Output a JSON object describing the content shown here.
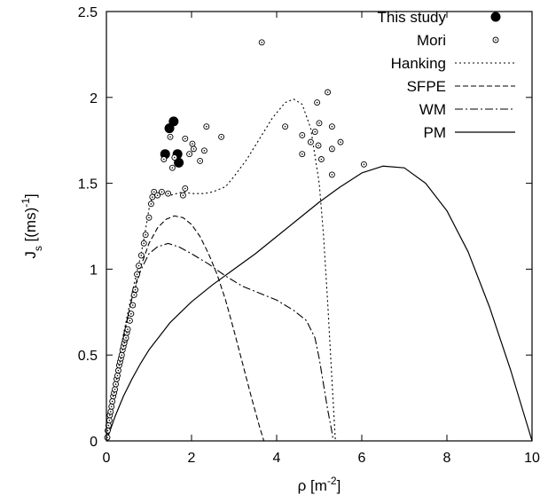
{
  "chart_data": {
    "type": "scatter+line",
    "title": "",
    "xlabel": "ρ [m",
    "xlabel_sup": "-2",
    "xlabel_close": "]",
    "ylabel": "J",
    "ylabel_sub": "s",
    "ylabel_mid": " [(ms)",
    "ylabel_sup": "-1",
    "ylabel_close": "]",
    "xlim": [
      0,
      10
    ],
    "ylim": [
      0,
      2.5
    ],
    "xticks": [
      "0",
      "2",
      "4",
      "6",
      "8",
      "10"
    ],
    "yticks": [
      "0",
      "0.5",
      "1",
      "1.5",
      "2",
      "2.5"
    ],
    "grid": false,
    "legend_position": "top-right",
    "series": [
      {
        "name": "This study",
        "kind": "marker-filled",
        "points": [
          [
            1.38,
            1.67
          ],
          [
            1.48,
            1.82
          ],
          [
            1.58,
            1.86
          ],
          [
            1.67,
            1.67
          ],
          [
            1.7,
            1.62
          ]
        ]
      },
      {
        "name": "Mori",
        "kind": "marker-open",
        "points": [
          [
            0.02,
            0.02
          ],
          [
            0.03,
            0.06
          ],
          [
            0.05,
            0.09
          ],
          [
            0.07,
            0.12
          ],
          [
            0.08,
            0.15
          ],
          [
            0.1,
            0.17
          ],
          [
            0.12,
            0.2
          ],
          [
            0.14,
            0.23
          ],
          [
            0.16,
            0.26
          ],
          [
            0.18,
            0.28
          ],
          [
            0.2,
            0.3
          ],
          [
            0.22,
            0.33
          ],
          [
            0.24,
            0.36
          ],
          [
            0.26,
            0.38
          ],
          [
            0.28,
            0.41
          ],
          [
            0.3,
            0.44
          ],
          [
            0.32,
            0.46
          ],
          [
            0.34,
            0.48
          ],
          [
            0.36,
            0.5
          ],
          [
            0.38,
            0.53
          ],
          [
            0.4,
            0.55
          ],
          [
            0.42,
            0.57
          ],
          [
            0.44,
            0.59
          ],
          [
            0.46,
            0.6
          ],
          [
            0.48,
            0.63
          ],
          [
            0.5,
            0.65
          ],
          [
            0.55,
            0.7
          ],
          [
            0.58,
            0.74
          ],
          [
            0.62,
            0.79
          ],
          [
            0.65,
            0.85
          ],
          [
            0.68,
            0.88
          ],
          [
            0.72,
            0.97
          ],
          [
            0.76,
            1.02
          ],
          [
            0.82,
            1.08
          ],
          [
            0.88,
            1.15
          ],
          [
            0.92,
            1.2
          ],
          [
            1.0,
            1.3
          ],
          [
            1.05,
            1.38
          ],
          [
            1.08,
            1.42
          ],
          [
            1.12,
            1.45
          ],
          [
            1.2,
            1.43
          ],
          [
            1.3,
            1.45
          ],
          [
            1.35,
            1.64
          ],
          [
            1.45,
            1.44
          ],
          [
            1.5,
            1.77
          ],
          [
            1.55,
            1.59
          ],
          [
            1.6,
            1.65
          ],
          [
            1.8,
            1.43
          ],
          [
            1.85,
            1.47
          ],
          [
            1.85,
            1.76
          ],
          [
            1.95,
            1.67
          ],
          [
            2.02,
            1.73
          ],
          [
            2.05,
            1.7
          ],
          [
            2.2,
            1.63
          ],
          [
            2.3,
            1.69
          ],
          [
            2.35,
            1.83
          ],
          [
            2.7,
            1.77
          ],
          [
            3.65,
            2.32
          ],
          [
            4.2,
            1.83
          ],
          [
            4.6,
            1.67
          ],
          [
            4.6,
            1.78
          ],
          [
            4.8,
            1.74
          ],
          [
            4.9,
            1.8
          ],
          [
            4.95,
            1.97
          ],
          [
            4.98,
            1.72
          ],
          [
            5.0,
            1.85
          ],
          [
            5.05,
            1.64
          ],
          [
            5.2,
            2.03
          ],
          [
            5.3,
            1.83
          ],
          [
            5.3,
            1.7
          ],
          [
            5.3,
            1.55
          ],
          [
            5.5,
            1.74
          ],
          [
            6.05,
            1.61
          ]
        ]
      },
      {
        "name": "Hanking",
        "kind": "line-dotted",
        "points": [
          [
            0,
            0
          ],
          [
            0.1,
            0.18
          ],
          [
            0.2,
            0.34
          ],
          [
            0.4,
            0.62
          ],
          [
            0.6,
            0.86
          ],
          [
            0.8,
            1.07
          ],
          [
            0.9,
            1.2
          ],
          [
            1.0,
            1.35
          ],
          [
            1.1,
            1.44
          ],
          [
            1.3,
            1.45
          ],
          [
            1.5,
            1.43
          ],
          [
            1.8,
            1.45
          ],
          [
            2.0,
            1.44
          ],
          [
            2.3,
            1.44
          ],
          [
            2.5,
            1.45
          ],
          [
            2.8,
            1.48
          ],
          [
            3.0,
            1.54
          ],
          [
            3.3,
            1.64
          ],
          [
            3.6,
            1.76
          ],
          [
            3.9,
            1.88
          ],
          [
            4.2,
            1.97
          ],
          [
            4.4,
            1.99
          ],
          [
            4.6,
            1.96
          ],
          [
            4.8,
            1.82
          ],
          [
            5.0,
            1.5
          ],
          [
            5.1,
            1.2
          ],
          [
            5.2,
            0.8
          ],
          [
            5.3,
            0.35
          ],
          [
            5.38,
            0.0
          ]
        ]
      },
      {
        "name": "SFPE",
        "kind": "line-dashed",
        "points": [
          [
            0,
            0
          ],
          [
            0.2,
            0.32
          ],
          [
            0.4,
            0.6
          ],
          [
            0.6,
            0.83
          ],
          [
            0.8,
            1.01
          ],
          [
            1.0,
            1.15
          ],
          [
            1.2,
            1.24
          ],
          [
            1.4,
            1.29
          ],
          [
            1.6,
            1.31
          ],
          [
            1.8,
            1.3
          ],
          [
            2.0,
            1.26
          ],
          [
            2.2,
            1.19
          ],
          [
            2.4,
            1.09
          ],
          [
            2.6,
            0.97
          ],
          [
            2.8,
            0.82
          ],
          [
            3.0,
            0.64
          ],
          [
            3.2,
            0.45
          ],
          [
            3.4,
            0.26
          ],
          [
            3.6,
            0.08
          ],
          [
            3.7,
            0.0
          ]
        ]
      },
      {
        "name": "WM",
        "kind": "line-dashdot",
        "points": [
          [
            0,
            0
          ],
          [
            0.2,
            0.33
          ],
          [
            0.4,
            0.61
          ],
          [
            0.6,
            0.83
          ],
          [
            0.8,
            0.99
          ],
          [
            1.0,
            1.09
          ],
          [
            1.2,
            1.13
          ],
          [
            1.45,
            1.15
          ],
          [
            1.7,
            1.13
          ],
          [
            2.0,
            1.09
          ],
          [
            2.4,
            1.03
          ],
          [
            2.8,
            0.96
          ],
          [
            3.2,
            0.9
          ],
          [
            3.6,
            0.86
          ],
          [
            4.0,
            0.82
          ],
          [
            4.4,
            0.76
          ],
          [
            4.7,
            0.7
          ],
          [
            4.9,
            0.6
          ],
          [
            5.0,
            0.48
          ],
          [
            5.1,
            0.33
          ],
          [
            5.2,
            0.18
          ],
          [
            5.3,
            0.05
          ],
          [
            5.33,
            0.0
          ]
        ]
      },
      {
        "name": "PM",
        "kind": "line-solid",
        "points": [
          [
            0,
            0
          ],
          [
            0.2,
            0.14
          ],
          [
            0.4,
            0.26
          ],
          [
            0.6,
            0.36
          ],
          [
            0.8,
            0.45
          ],
          [
            1.0,
            0.53
          ],
          [
            1.5,
            0.69
          ],
          [
            2.0,
            0.81
          ],
          [
            2.5,
            0.91
          ],
          [
            3.0,
            1.0
          ],
          [
            3.5,
            1.09
          ],
          [
            4.0,
            1.19
          ],
          [
            4.5,
            1.29
          ],
          [
            5.0,
            1.39
          ],
          [
            5.5,
            1.48
          ],
          [
            6.0,
            1.56
          ],
          [
            6.5,
            1.6
          ],
          [
            7.0,
            1.59
          ],
          [
            7.5,
            1.5
          ],
          [
            8.0,
            1.34
          ],
          [
            8.5,
            1.1
          ],
          [
            9.0,
            0.78
          ],
          [
            9.5,
            0.41
          ],
          [
            10.0,
            0.0
          ]
        ]
      }
    ]
  }
}
